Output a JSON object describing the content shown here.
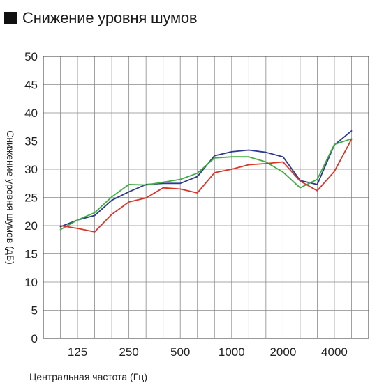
{
  "title": "Снижение уровня шумов",
  "chart_data": {
    "type": "line",
    "title": "Снижение уровня шумов",
    "xlabel": "Центральная частота (Гц)",
    "ylabel": "Снижение уровня шумов (дБ)",
    "ylim": [
      0,
      50
    ],
    "yticks": [
      "0",
      "5",
      "10",
      "15",
      "20",
      "25",
      "30",
      "35",
      "40",
      "45",
      "50"
    ],
    "xticks": [
      {
        "label": "125",
        "pos": 2
      },
      {
        "label": "250",
        "pos": 5
      },
      {
        "label": "500",
        "pos": 8
      },
      {
        "label": "1000",
        "pos": 11
      },
      {
        "label": "2000",
        "pos": 14
      },
      {
        "label": "4000",
        "pos": 17
      }
    ],
    "x_count": 19,
    "grid": true,
    "series": [
      {
        "color": "#2b3a8c",
        "x": [
          1,
          2,
          3,
          4,
          5,
          6,
          7,
          8,
          9,
          10,
          11,
          12,
          13,
          14,
          15,
          16,
          17,
          18
        ],
        "values": [
          19.8,
          21.0,
          21.8,
          24.5,
          26.0,
          27.3,
          27.5,
          27.5,
          28.7,
          32.4,
          33.1,
          33.4,
          33.0,
          32.2,
          28.0,
          27.3,
          34.3,
          36.8
        ]
      },
      {
        "color": "#3fae3f",
        "x": [
          1,
          2,
          3,
          4,
          5,
          6,
          7,
          8,
          9,
          10,
          11,
          12,
          13,
          14,
          15,
          16,
          17,
          18
        ],
        "values": [
          19.3,
          21.0,
          22.3,
          25.1,
          27.3,
          27.2,
          27.7,
          28.2,
          29.3,
          32.0,
          32.2,
          32.2,
          31.3,
          29.5,
          26.7,
          28.2,
          34.4,
          35.4
        ]
      },
      {
        "color": "#d9362b",
        "x": [
          1,
          2,
          3,
          4,
          5,
          6,
          7,
          8,
          9,
          10,
          11,
          12,
          13,
          14,
          15,
          16,
          17,
          18
        ],
        "values": [
          20.0,
          19.5,
          18.9,
          22.0,
          24.2,
          24.9,
          26.7,
          26.5,
          25.8,
          29.4,
          30.0,
          30.8,
          31.0,
          31.3,
          27.9,
          26.2,
          29.6,
          35.3
        ]
      }
    ]
  }
}
